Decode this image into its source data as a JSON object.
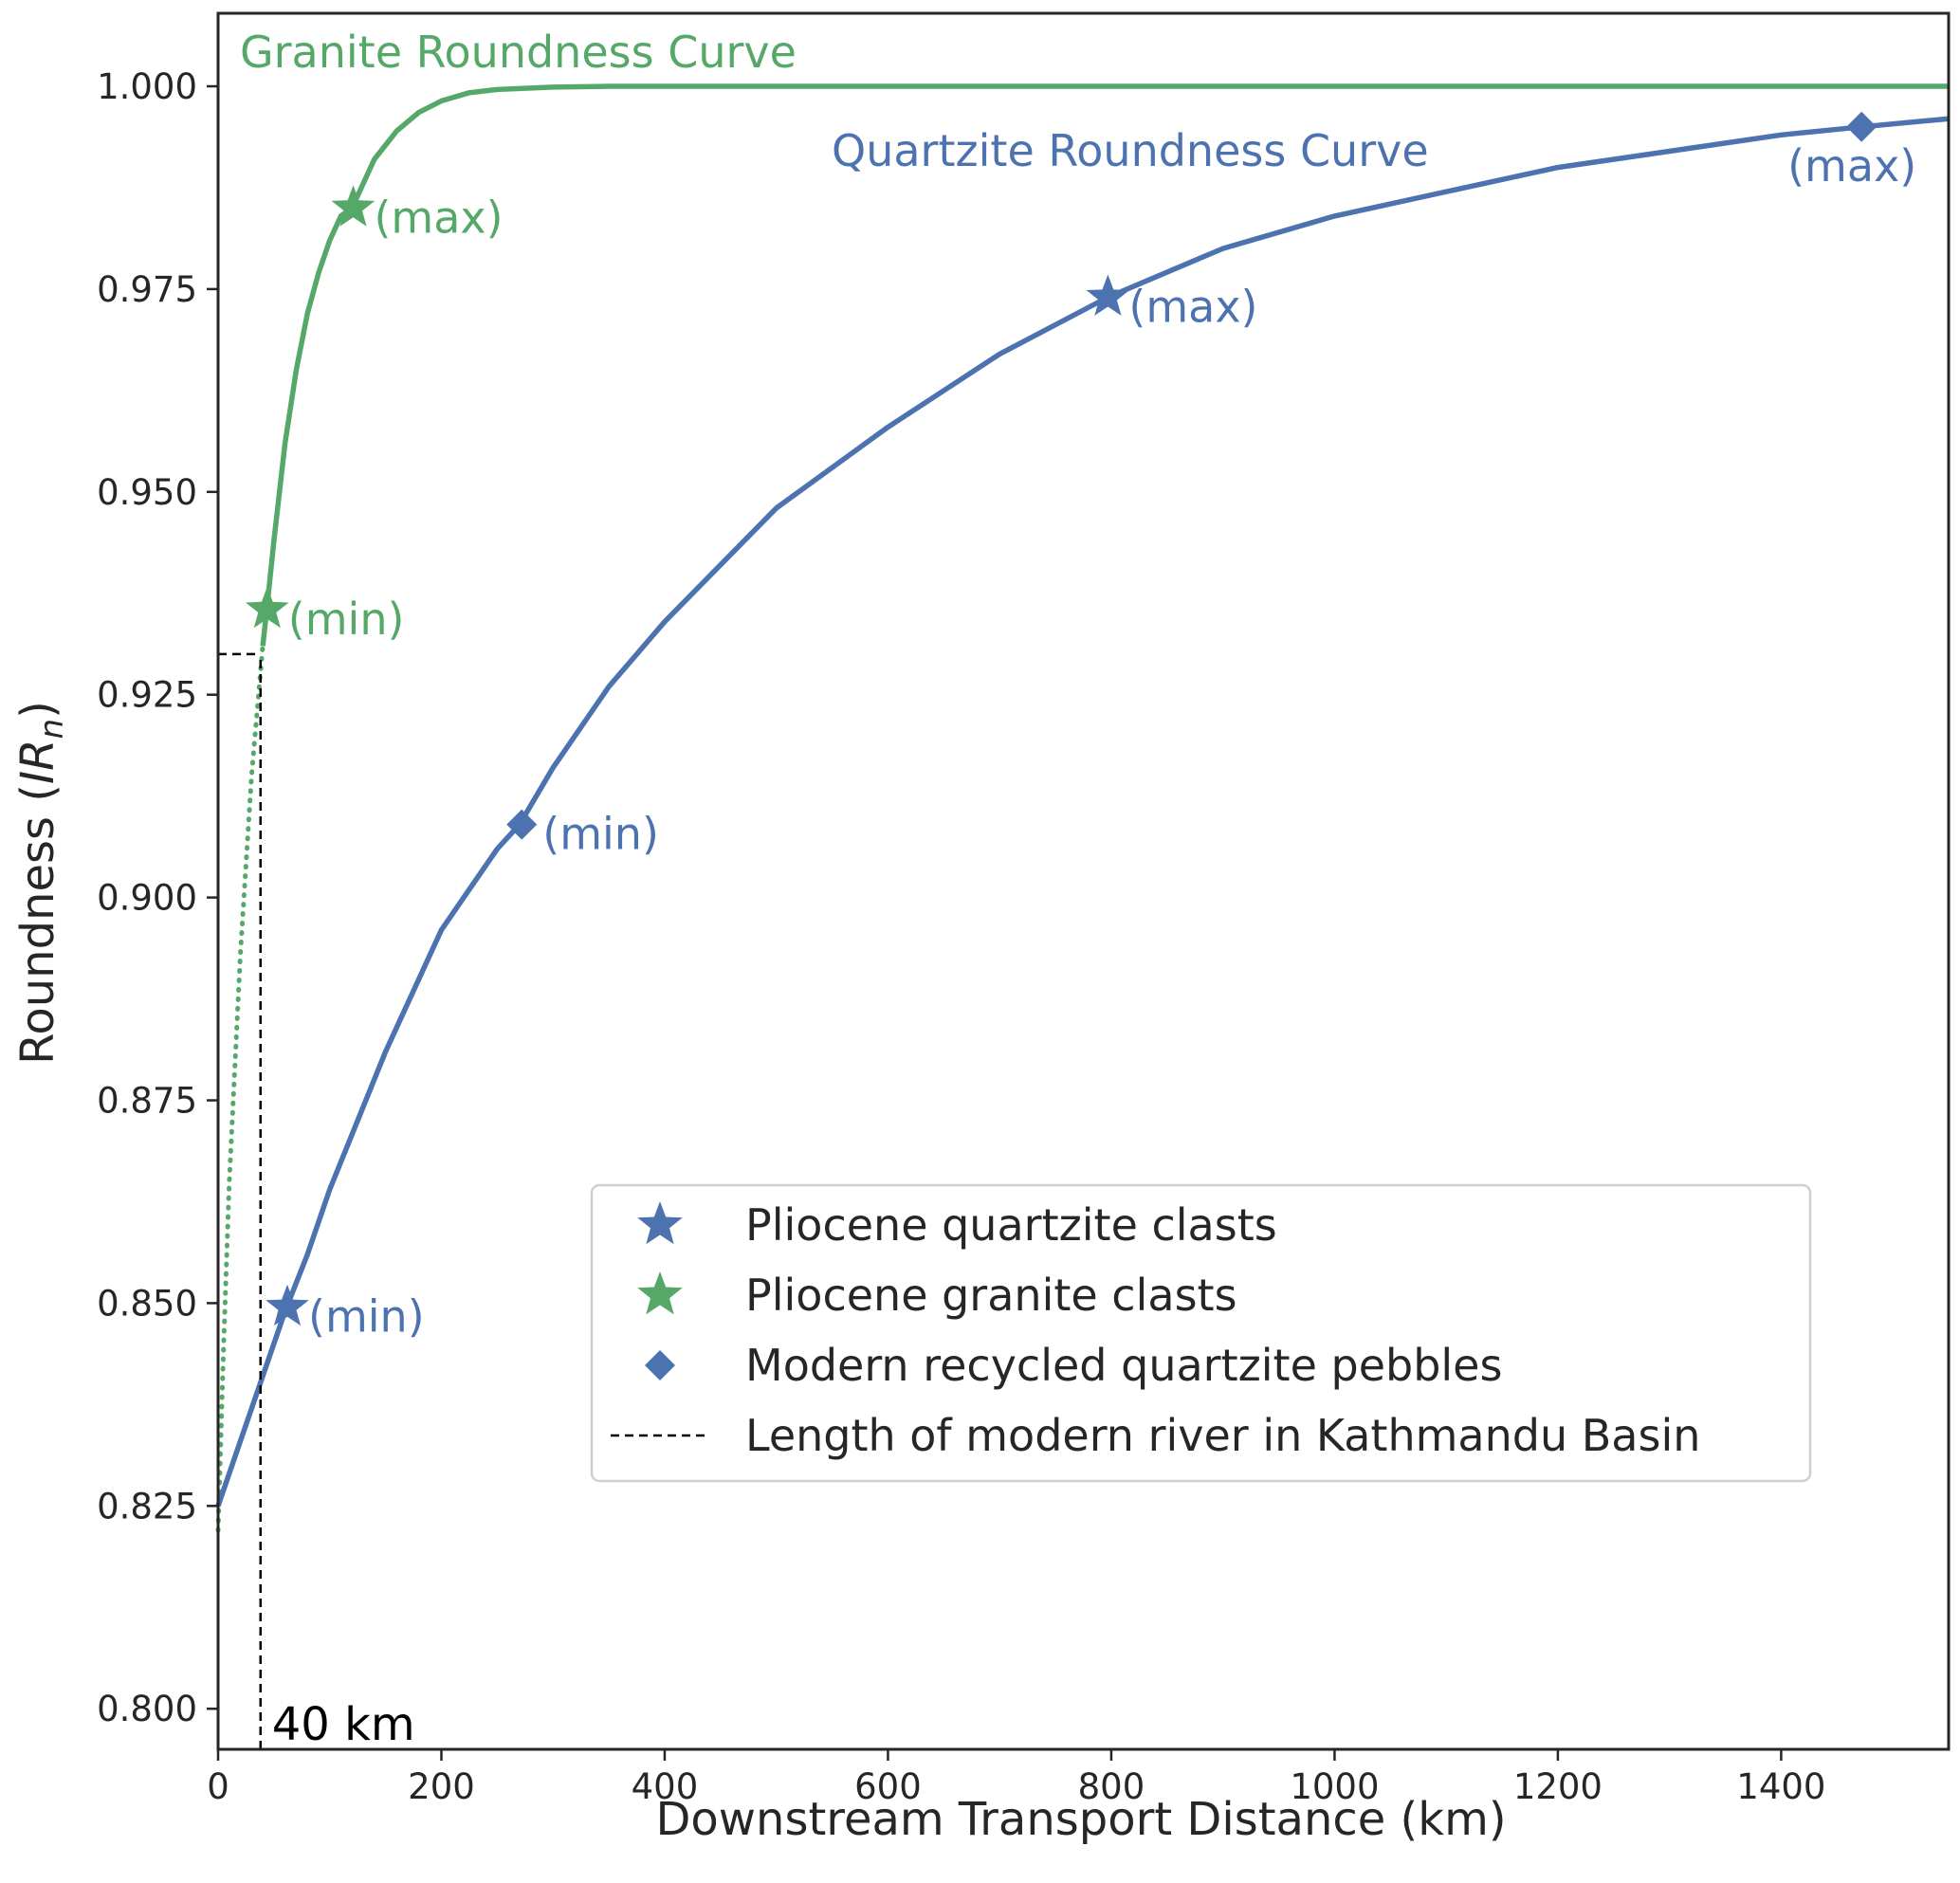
{
  "chart_data": {
    "type": "line",
    "xlabel": "Downstream Transport Distance (km)",
    "ylabel_main": "Roundness (",
    "ylabel_sym": "IR",
    "ylabel_sub": "n",
    "ylabel_close": ")",
    "xlim": [
      0,
      1550
    ],
    "ylim": [
      0.795,
      1.009
    ],
    "xticks": [
      0,
      200,
      400,
      600,
      800,
      1000,
      1200,
      1400
    ],
    "xtick_labels": [
      "0",
      "200",
      "400",
      "600",
      "800",
      "1000",
      "1200",
      "1400"
    ],
    "yticks": [
      0.8,
      0.825,
      0.85,
      0.875,
      0.9,
      0.925,
      0.95,
      0.975,
      1.0
    ],
    "ytick_labels": [
      "0.800",
      "0.825",
      "0.850",
      "0.875",
      "0.900",
      "0.925",
      "0.950",
      "0.975",
      "1.000"
    ],
    "grid": false,
    "legend_position": "lower-right",
    "colors": {
      "granite": "#55a868",
      "quartzite": "#4c72b0",
      "reference": "#000000",
      "axis": "#262626"
    },
    "curve_labels": [
      {
        "text": "Granite Roundness Curve",
        "series": "granite"
      },
      {
        "text": "Quartzite Roundness Curve",
        "series": "quartzite"
      }
    ],
    "series": [
      {
        "name": "Granite Roundness Curve",
        "color": "#55a868",
        "dotted_until_x": 40,
        "x": [
          0,
          5,
          10,
          20,
          30,
          40,
          44,
          50,
          60,
          70,
          80,
          90,
          100,
          110,
          120,
          140,
          160,
          180,
          200,
          225,
          250,
          300,
          350,
          400,
          600,
          800,
          1000,
          1200,
          1400,
          1550
        ],
        "y": [
          0.822,
          0.845,
          0.865,
          0.893,
          0.915,
          0.931,
          0.936,
          0.944,
          0.956,
          0.965,
          0.972,
          0.977,
          0.981,
          0.984,
          0.985,
          0.991,
          0.9945,
          0.9968,
          0.9982,
          0.9992,
          0.9996,
          0.9999,
          1.0,
          1.0,
          1.0,
          1.0,
          1.0,
          1.0,
          1.0,
          1.0
        ]
      },
      {
        "name": "Quartzite Roundness Curve",
        "color": "#4c72b0",
        "x": [
          0,
          20,
          40,
          60,
          80,
          100,
          150,
          200,
          250,
          270,
          300,
          350,
          400,
          450,
          500,
          600,
          700,
          797,
          900,
          1000,
          1100,
          1200,
          1300,
          1400,
          1472,
          1550
        ],
        "y": [
          0.825,
          0.833,
          0.841,
          0.849,
          0.856,
          0.864,
          0.881,
          0.896,
          0.906,
          0.909,
          0.916,
          0.926,
          0.934,
          0.941,
          0.948,
          0.958,
          0.967,
          0.974,
          0.98,
          0.984,
          0.987,
          0.99,
          0.992,
          0.994,
          0.995,
          0.996
        ]
      }
    ],
    "points": [
      {
        "series": "Pliocene granite clasts",
        "marker": "star",
        "color": "#55a868",
        "x": 44,
        "y": 0.9355,
        "label": "(min)"
      },
      {
        "series": "Pliocene granite clasts",
        "marker": "star",
        "color": "#55a868",
        "x": 121,
        "y": 0.985,
        "label": "(max)"
      },
      {
        "series": "Pliocene quartzite clasts",
        "marker": "star",
        "color": "#4c72b0",
        "x": 62,
        "y": 0.8495,
        "label": "(min)"
      },
      {
        "series": "Pliocene quartzite clasts",
        "marker": "star",
        "color": "#4c72b0",
        "x": 797,
        "y": 0.974,
        "label": "(max)"
      },
      {
        "series": "Modern recycled quartzite pebbles",
        "marker": "diamond",
        "color": "#4c72b0",
        "x": 272,
        "y": 0.909,
        "label": "(min)"
      },
      {
        "series": "Modern recycled quartzite pebbles",
        "marker": "diamond",
        "color": "#4c72b0",
        "x": 1472,
        "y": 0.995,
        "label": "(max)"
      }
    ],
    "reference_line": {
      "x": 38,
      "y": 0.93,
      "label": "40 km"
    },
    "legend": [
      {
        "label": "Pliocene quartzite clasts",
        "marker": "star",
        "color": "#4c72b0"
      },
      {
        "label": "Pliocene granite clasts",
        "marker": "star",
        "color": "#55a868"
      },
      {
        "label": "Modern recycled quartzite pebbles",
        "marker": "diamond",
        "color": "#4c72b0"
      },
      {
        "label": "Length of modern river in Kathmandu Basin",
        "marker": "dashed-line",
        "color": "#000000"
      }
    ]
  }
}
